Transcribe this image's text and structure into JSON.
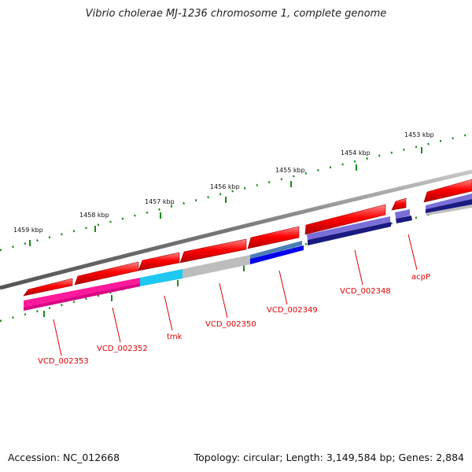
{
  "title": "Vibrio cholerae MJ-1236 chromosome 1, complete genome",
  "footer": {
    "accession": "Accession: NC_012668",
    "info": "Topology: circular; Length: 3,149,584 bp; Genes: 2,884"
  },
  "scale": [
    "1459 kbp",
    "1458 kbp",
    "1457 kbp",
    "1456 kbp",
    "1455 kbp",
    "1454 kbp",
    "1453 kbp"
  ],
  "genes": [
    "VCD_002353",
    "VCD_002352",
    "tmk",
    "VCD_002350",
    "VCD_002349",
    "VCD_002348",
    "acpP"
  ],
  "colors": {
    "backbone": "#808080",
    "gene_arrow": "#ff0000",
    "label": "#e00000",
    "tick": "#1a8a1a",
    "product_magenta": "#ff1a9c",
    "product_cyan": "#1ec8f0",
    "product_gray": "#bdbdbd",
    "product_steel": "#4a7fb5",
    "product_blue": "#0000ee",
    "product_lavender": "#7a6fd8",
    "product_navy": "#1a1a80"
  }
}
